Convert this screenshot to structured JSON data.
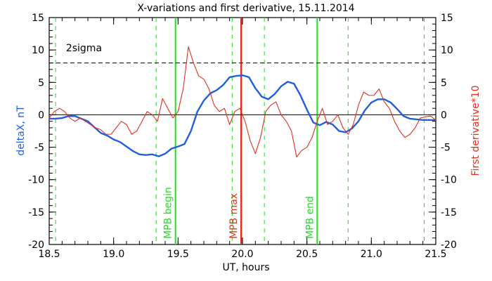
{
  "chart_data": {
    "type": "line",
    "title": "X-variations and first derivative, 15.11.2014",
    "xlabel": "UT, hours",
    "ylabel_left": "deltaX, nT",
    "ylabel_right": "First derivative*10",
    "xlim": [
      18.5,
      21.5
    ],
    "ylim": [
      -20,
      15
    ],
    "x_ticks": [
      18.5,
      19.0,
      19.5,
      20.0,
      20.5,
      21.0,
      21.5
    ],
    "x_tick_labels": [
      "18.5",
      "19.0",
      "19.5",
      "20.0",
      "20.5",
      "21.0",
      "21.5"
    ],
    "y_ticks": [
      15,
      10,
      5,
      0,
      -5,
      -10,
      -15,
      -20
    ],
    "y_tick_labels": [
      "15",
      "10",
      "5",
      "0",
      "-5",
      "-10",
      "-15",
      "-20"
    ],
    "grid": false,
    "colors": {
      "delta_x": "#1f5fdc",
      "derivative": "#e0301e",
      "mpb_green": "#22dd22",
      "mpb_max_red": "#e0301e",
      "dashed_green": "#22dd22",
      "black": "#000000"
    },
    "sigma_line": {
      "y": 8,
      "label": "2sigma"
    },
    "zero_line": {
      "y": 0
    },
    "vertical_lines": {
      "dashed_green": [
        18.55,
        19.33,
        19.92,
        20.17,
        20.82,
        21.41
      ],
      "solid_green": [
        19.48,
        20.58
      ],
      "solid_red": [
        19.99
      ]
    },
    "annotations": [
      {
        "text": "MPB begin",
        "x": 19.48,
        "color": "#22dd22"
      },
      {
        "text": "MPB max",
        "x": 19.99,
        "color": "#e0301e"
      },
      {
        "text": "MPB end",
        "x": 20.58,
        "color": "#22dd22"
      }
    ],
    "series": [
      {
        "key": "delta_x",
        "stroke": "#1f5fdc",
        "x": [
          18.5,
          18.55,
          18.6,
          18.65,
          18.7,
          18.75,
          18.8,
          18.85,
          18.9,
          18.95,
          19.0,
          19.05,
          19.1,
          19.15,
          19.2,
          19.25,
          19.3,
          19.35,
          19.4,
          19.45,
          19.5,
          19.55,
          19.6,
          19.65,
          19.7,
          19.75,
          19.8,
          19.85,
          19.9,
          19.95,
          20.0,
          20.05,
          20.1,
          20.15,
          20.2,
          20.25,
          20.3,
          20.35,
          20.4,
          20.45,
          20.5,
          20.55,
          20.6,
          20.65,
          20.7,
          20.75,
          20.8,
          20.85,
          20.9,
          20.95,
          21.0,
          21.05,
          21.1,
          21.15,
          21.2,
          21.25,
          21.3,
          21.35,
          21.4,
          21.45,
          21.5
        ],
        "values": [
          -0.6,
          -0.6,
          -0.5,
          -0.2,
          -0.2,
          -0.6,
          -1.0,
          -1.9,
          -2.8,
          -3.2,
          -3.8,
          -4.2,
          -4.9,
          -5.6,
          -6.1,
          -6.2,
          -6.1,
          -6.4,
          -6.0,
          -5.2,
          -4.9,
          -4.5,
          -2.5,
          0.5,
          2.2,
          3.3,
          3.8,
          4.6,
          5.8,
          6.0,
          6.1,
          5.8,
          4.1,
          2.8,
          2.4,
          3.2,
          4.4,
          5.1,
          4.8,
          3.0,
          0.8,
          -1.2,
          -1.6,
          -1.1,
          -1.5,
          -2.5,
          -2.7,
          -2.1,
          -1.0,
          0.7,
          1.9,
          2.4,
          2.4,
          1.9,
          0.9,
          -0.2,
          -0.6,
          -0.7,
          -0.8,
          -0.8,
          -0.8
        ]
      },
      {
        "key": "derivative",
        "stroke": "#e0301e",
        "x": [
          18.5,
          18.54,
          18.58,
          18.62,
          18.66,
          18.7,
          18.74,
          18.78,
          18.82,
          18.86,
          18.9,
          18.94,
          18.98,
          19.02,
          19.06,
          19.1,
          19.14,
          19.18,
          19.22,
          19.26,
          19.3,
          19.34,
          19.38,
          19.42,
          19.46,
          19.5,
          19.54,
          19.58,
          19.62,
          19.66,
          19.7,
          19.74,
          19.78,
          19.82,
          19.86,
          19.9,
          19.94,
          19.98,
          20.02,
          20.06,
          20.1,
          20.14,
          20.18,
          20.22,
          20.26,
          20.3,
          20.34,
          20.38,
          20.42,
          20.46,
          20.5,
          20.54,
          20.58,
          20.62,
          20.66,
          20.7,
          20.74,
          20.78,
          20.82,
          20.86,
          20.9,
          20.94,
          20.98,
          21.02,
          21.06,
          21.1,
          21.14,
          21.18,
          21.22,
          21.26,
          21.3,
          21.34,
          21.38,
          21.42,
          21.46,
          21.5
        ],
        "values": [
          -0.5,
          0.5,
          1.0,
          0.5,
          -0.5,
          -1.0,
          -0.5,
          -1.0,
          -1.5,
          -2.0,
          -2.3,
          -3.0,
          -3.0,
          -2.0,
          -1.0,
          -1.5,
          -3.0,
          -2.5,
          -1.0,
          0.5,
          0.0,
          -1.0,
          2.5,
          1.0,
          -0.5,
          0.5,
          4.0,
          10.5,
          8.0,
          6.0,
          5.5,
          4.0,
          1.5,
          0.5,
          1.0,
          -1.5,
          0.5,
          1.0,
          -1.0,
          -4.0,
          -6.0,
          -3.5,
          0.5,
          1.5,
          2.0,
          0.0,
          -1.0,
          -2.5,
          -6.5,
          -5.5,
          -5.0,
          -3.5,
          -1.0,
          1.0,
          -1.5,
          -1.0,
          0.0,
          -2.0,
          -3.0,
          -1.5,
          1.5,
          3.5,
          3.0,
          3.0,
          4.0,
          2.0,
          1.0,
          -1.0,
          -2.5,
          -3.5,
          -3.0,
          -2.0,
          -0.5,
          -0.3,
          -0.2,
          -0.8
        ]
      }
    ]
  }
}
